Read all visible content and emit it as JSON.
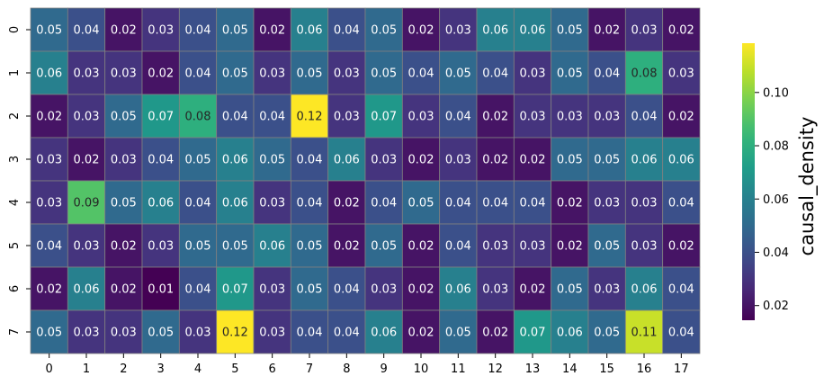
{
  "chart_data": {
    "type": "heatmap",
    "x_categories": [
      "0",
      "1",
      "2",
      "3",
      "4",
      "5",
      "6",
      "7",
      "8",
      "9",
      "10",
      "11",
      "12",
      "13",
      "14",
      "15",
      "16",
      "17"
    ],
    "y_categories": [
      "0",
      "1",
      "2",
      "3",
      "4",
      "5",
      "6",
      "7"
    ],
    "values": [
      [
        "0.05",
        "0.04",
        "0.02",
        "0.03",
        "0.04",
        "0.05",
        "0.02",
        "0.06",
        "0.04",
        "0.05",
        "0.02",
        "0.03",
        "0.06",
        "0.06",
        "0.05",
        "0.02",
        "0.03",
        "0.02"
      ],
      [
        "0.06",
        "0.03",
        "0.03",
        "0.02",
        "0.04",
        "0.05",
        "0.03",
        "0.05",
        "0.03",
        "0.05",
        "0.04",
        "0.05",
        "0.04",
        "0.03",
        "0.05",
        "0.04",
        "0.08",
        "0.03"
      ],
      [
        "0.02",
        "0.03",
        "0.05",
        "0.07",
        "0.08",
        "0.04",
        "0.04",
        "0.12",
        "0.03",
        "0.07",
        "0.03",
        "0.04",
        "0.02",
        "0.03",
        "0.03",
        "0.03",
        "0.04",
        "0.02"
      ],
      [
        "0.03",
        "0.02",
        "0.03",
        "0.04",
        "0.05",
        "0.06",
        "0.05",
        "0.04",
        "0.06",
        "0.03",
        "0.02",
        "0.03",
        "0.02",
        "0.02",
        "0.05",
        "0.05",
        "0.06",
        "0.06"
      ],
      [
        "0.03",
        "0.09",
        "0.05",
        "0.06",
        "0.04",
        "0.06",
        "0.03",
        "0.04",
        "0.02",
        "0.04",
        "0.05",
        "0.04",
        "0.04",
        "0.04",
        "0.02",
        "0.03",
        "0.03",
        "0.04"
      ],
      [
        "0.04",
        "0.03",
        "0.02",
        "0.03",
        "0.05",
        "0.05",
        "0.06",
        "0.05",
        "0.02",
        "0.05",
        "0.02",
        "0.04",
        "0.03",
        "0.03",
        "0.02",
        "0.05",
        "0.03",
        "0.02"
      ],
      [
        "0.02",
        "0.06",
        "0.02",
        "0.01",
        "0.04",
        "0.07",
        "0.03",
        "0.05",
        "0.04",
        "0.03",
        "0.02",
        "0.06",
        "0.03",
        "0.02",
        "0.05",
        "0.03",
        "0.06",
        "0.04"
      ],
      [
        "0.05",
        "0.03",
        "0.03",
        "0.05",
        "0.03",
        "0.12",
        "0.03",
        "0.04",
        "0.04",
        "0.06",
        "0.02",
        "0.05",
        "0.02",
        "0.07",
        "0.06",
        "0.05",
        "0.11",
        "0.04"
      ]
    ],
    "colorbar": {
      "label": "causal_density",
      "ticks": [
        "0.02",
        "0.04",
        "0.06",
        "0.08",
        "0.10"
      ],
      "range": [
        0.0145,
        0.1185
      ],
      "colormap": "viridis"
    },
    "title": "",
    "xlabel": "",
    "ylabel": "",
    "grid_color": "#808080"
  }
}
